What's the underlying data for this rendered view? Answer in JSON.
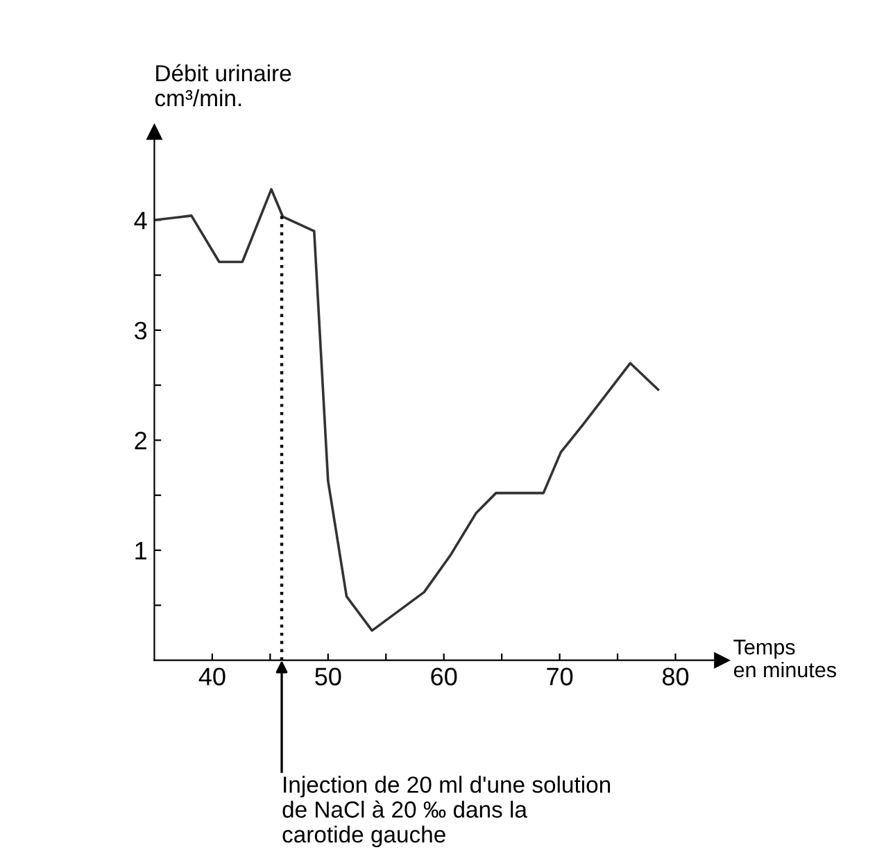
{
  "chart_data": {
    "type": "line",
    "xlabel": "Temps\nen minutes",
    "ylabel": "Débit urinaire\ncm³/min.",
    "x": [
      35.0,
      38.2,
      40.6,
      42.6,
      45.1,
      46.1,
      48.8,
      50.0,
      51.6,
      53.8,
      58.3,
      60.6,
      62.8,
      64.5,
      68.6,
      70.1,
      72.0,
      76.1,
      78.5
    ],
    "series": [
      {
        "color": "#333333",
        "values": [
          4.0,
          4.04,
          3.62,
          3.62,
          4.28,
          4.03,
          3.9,
          1.63,
          0.58,
          0.27,
          0.62,
          0.96,
          1.34,
          1.52,
          1.52,
          1.89,
          2.14,
          2.7,
          2.46
        ]
      }
    ],
    "xlim": [
      35,
      84
    ],
    "ylim": [
      0,
      4.8
    ],
    "xticks": [
      40,
      {
        "value": 45,
        "label": null
      },
      50,
      {
        "value": 55,
        "label": null
      },
      60,
      {
        "value": 65,
        "label": null
      },
      70,
      {
        "value": 75,
        "label": null
      },
      80
    ],
    "yticks": [
      {
        "value": 0.5,
        "label": null
      },
      1,
      {
        "value": 1.5,
        "label": null
      },
      2,
      {
        "value": 2.5,
        "label": null
      },
      3,
      {
        "value": 3.5,
        "label": null
      },
      4
    ],
    "ref_lines": [
      {
        "axis": "x",
        "value": 46,
        "line_style": "dotted",
        "color": "#111111"
      }
    ],
    "annotations": [
      {
        "text": "Injection de 20 ml d'une solution\nde NaCl à 20 ‰ dans la\ncarotide gauche",
        "x": 46,
        "y": 0
      }
    ],
    "grid": false,
    "marker": "none",
    "line_style": "solid"
  }
}
